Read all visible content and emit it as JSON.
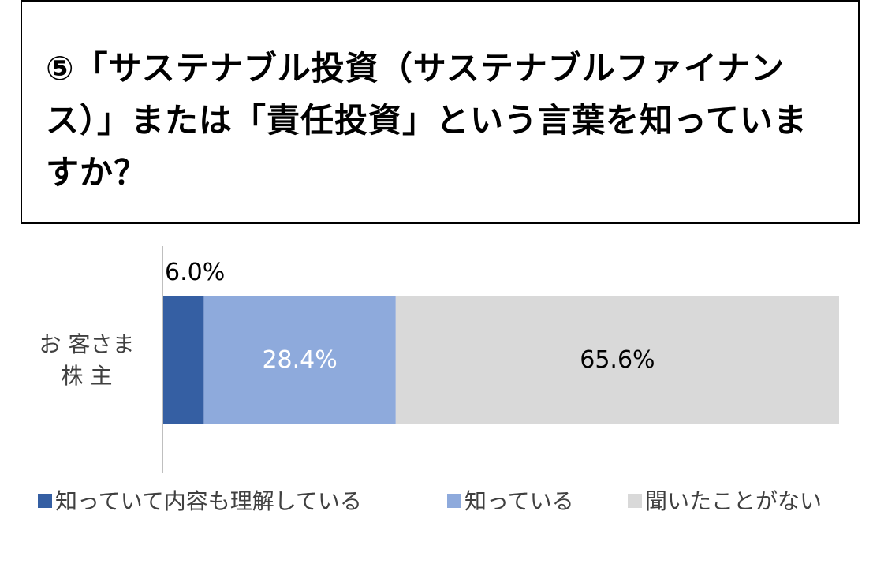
{
  "question": {
    "text": "⑤「サステナブル投資（サステナブルファイナンス）」または「責任投資」という言葉を知っていますか？"
  },
  "chart_data": {
    "type": "bar",
    "orientation": "horizontal",
    "stacked": true,
    "categories": [
      "お客さま株主"
    ],
    "category_lines": [
      "お 客さま",
      "株 主"
    ],
    "series": [
      {
        "name": "知っていて内容も理解している",
        "values": [
          6.0
        ],
        "label": "6.0%",
        "color": "#355fa3"
      },
      {
        "name": "知っている",
        "values": [
          28.4
        ],
        "label": "28.4%",
        "color": "#8eaadc"
      },
      {
        "name": "聞いたことがない",
        "values": [
          65.6
        ],
        "label": "65.6%",
        "color": "#d9d9d9"
      }
    ],
    "unit": "%",
    "xlim": [
      0,
      100
    ],
    "grid": false,
    "legend_position": "bottom"
  }
}
